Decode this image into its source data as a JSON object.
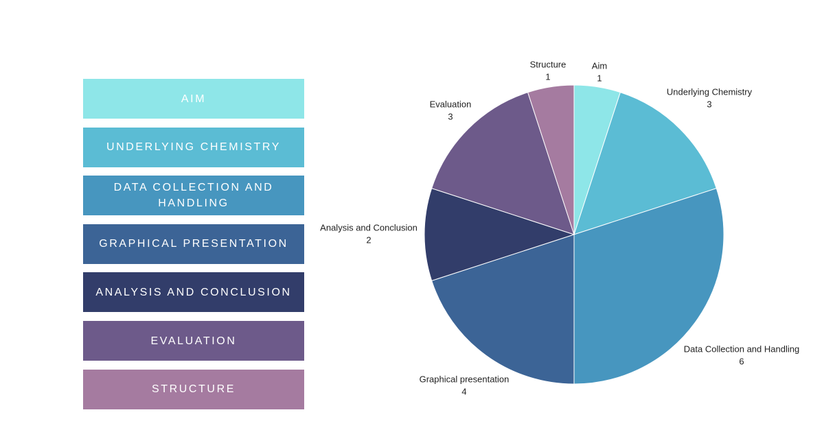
{
  "chart_data": {
    "type": "pie",
    "categories": [
      "Aim",
      "Underlying Chemistry",
      "Data Collection and Handling",
      "Graphical presentation",
      "Analysis and Conclusion",
      "Evaluation",
      "Structure"
    ],
    "values": [
      1,
      3,
      6,
      4,
      2,
      3,
      1
    ],
    "colors": [
      "#8ee6e8",
      "#5bbcd4",
      "#4796bf",
      "#3c6496",
      "#323d6a",
      "#6d5a8a",
      "#a57ba0"
    ],
    "legend_labels": [
      "AIM",
      "UNDERLYING CHEMISTRY",
      "DATA COLLECTION AND HANDLING",
      "GRAPHICAL PRESENTATION",
      "ANALYSIS AND CONCLUSION",
      "EVALUATION",
      "STRUCTURE"
    ]
  }
}
